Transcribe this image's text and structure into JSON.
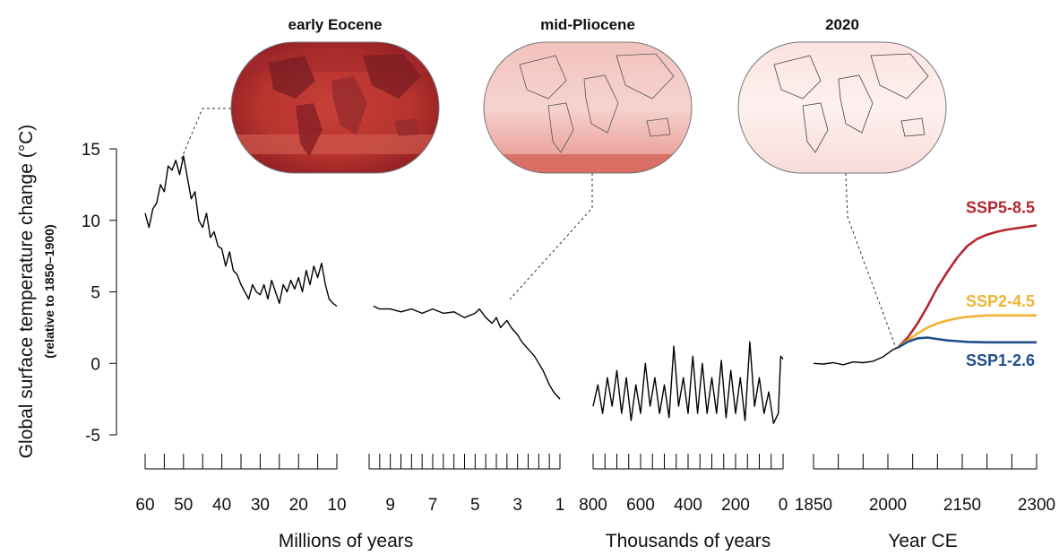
{
  "chart_data": {
    "type": "line",
    "ylabel": "Global surface temperature change (°C)",
    "ylabel_sub": "(relative to 1850–1900)",
    "yticks": [
      15,
      10,
      5,
      0,
      -5
    ],
    "ylim": [
      -5,
      15
    ],
    "grid": false,
    "panels": [
      {
        "xlabel": "Millions of years",
        "xlim": [
          60,
          10
        ],
        "tick_labels": [
          "60",
          "50",
          "40",
          "30",
          "20",
          "10"
        ],
        "series": [
          {
            "name": "",
            "x": [
              60,
              59,
              58,
              57,
              56,
              55,
              54,
              53,
              52,
              51,
              50,
              49,
              48,
              47,
              46,
              45,
              44,
              43,
              42,
              41,
              40,
              39,
              38,
              37,
              36,
              35,
              34,
              33,
              32,
              31,
              30,
              29,
              28,
              27,
              26,
              25,
              24,
              23,
              22,
              21,
              20,
              19,
              18,
              17,
              16,
              15,
              14,
              13,
              12,
              11,
              10
            ],
            "y": [
              10.5,
              9.5,
              10.8,
              11.2,
              12.5,
              12,
              13.8,
              13.5,
              14.2,
              13.2,
              14.5,
              13,
              11.5,
              12,
              10,
              9.5,
              10.5,
              8.8,
              9.2,
              8.2,
              8,
              6.8,
              7.8,
              6.5,
              6.2,
              5.5,
              5,
              4.5,
              5.5,
              5,
              4.8,
              5.5,
              4.5,
              5.8,
              5,
              4.2,
              5.5,
              5,
              5.8,
              5.2,
              6,
              5,
              6.5,
              5.5,
              6.8,
              6,
              7,
              5.5,
              4.5,
              4.2,
              4
            ]
          }
        ]
      },
      {
        "xlabel": "",
        "xlim": [
          10,
          1
        ],
        "tick_labels": [
          "9",
          "7",
          "5",
          "3",
          "1"
        ],
        "series": [
          {
            "name": "",
            "x": [
              9.8,
              9.5,
              9,
              8.5,
              8,
              7.5,
              7,
              6.5,
              6,
              5.5,
              5,
              4.8,
              4.5,
              4.2,
              4,
              3.8,
              3.5,
              3.3,
              3,
              2.8,
              2.5,
              2.2,
              2,
              1.8,
              1.5,
              1.3,
              1
            ],
            "y": [
              4,
              3.8,
              3.8,
              3.6,
              3.8,
              3.5,
              3.8,
              3.5,
              3.6,
              3.2,
              3.5,
              3.8,
              3.2,
              2.8,
              3.2,
              2.5,
              3,
              2.5,
              2,
              1.5,
              1,
              0.5,
              0,
              -0.5,
              -1.5,
              -2,
              -2.5
            ]
          }
        ]
      },
      {
        "xlabel": "Thousands of years",
        "xlim": [
          800,
          0
        ],
        "tick_labels": [
          "800",
          "600",
          "400",
          "200",
          "0"
        ],
        "series": [
          {
            "name": "",
            "x": [
              800,
              780,
              760,
              740,
              720,
              700,
              680,
              660,
              640,
              620,
              600,
              580,
              560,
              540,
              520,
              500,
              480,
              460,
              440,
              420,
              400,
              380,
              360,
              340,
              320,
              300,
              280,
              260,
              240,
              220,
              200,
              180,
              160,
              140,
              120,
              100,
              80,
              60,
              40,
              20,
              10,
              0
            ],
            "y": [
              -3,
              -1.5,
              -3.5,
              -1,
              -3,
              -0.5,
              -3.5,
              -1,
              -4,
              -1.5,
              -3.5,
              0,
              -3,
              -1,
              -3.5,
              -1.5,
              -3.8,
              1.2,
              -3,
              -1,
              -3.5,
              0.5,
              -3.5,
              0,
              -3.5,
              -1,
              -3.5,
              0.2,
              -3.8,
              -0.5,
              -3.5,
              -1,
              -4,
              1.5,
              -3,
              -1,
              -3.5,
              -2,
              -4.2,
              -3.5,
              0.5,
              0.3
            ]
          }
        ]
      },
      {
        "xlabel": "Year CE",
        "xlim": [
          1850,
          2300
        ],
        "tick_labels": [
          "1850",
          "2000",
          "2150",
          "2300"
        ],
        "series": [
          {
            "name": "",
            "color": "#000000",
            "x": [
              1850,
              1870,
              1890,
              1910,
              1930,
              1950,
              1970,
              1990,
              2000,
              2010,
              2020
            ],
            "y": [
              0,
              -0.05,
              0.05,
              -0.1,
              0.1,
              0.05,
              0.15,
              0.45,
              0.7,
              0.95,
              1.1
            ]
          },
          {
            "name": "SSP5-8.5",
            "color": "#b5262d",
            "x": [
              2020,
              2040,
              2060,
              2080,
              2100,
              2120,
              2140,
              2160,
              2180,
              2200,
              2220,
              2240,
              2260,
              2280,
              2300
            ],
            "y": [
              1.1,
              1.8,
              2.8,
              4.0,
              5.3,
              6.4,
              7.4,
              8.2,
              8.7,
              9.0,
              9.2,
              9.35,
              9.45,
              9.55,
              9.65
            ]
          },
          {
            "name": "SSP2-4.5",
            "color": "#f2b233",
            "x": [
              2020,
              2040,
              2060,
              2080,
              2100,
              2120,
              2140,
              2160,
              2180,
              2200,
              2220,
              2240,
              2260,
              2280,
              2300
            ],
            "y": [
              1.1,
              1.6,
              2.1,
              2.5,
              2.8,
              3.0,
              3.15,
              3.25,
              3.3,
              3.35,
              3.35,
              3.35,
              3.35,
              3.35,
              3.35
            ]
          },
          {
            "name": "SSP1-2.6",
            "color": "#1f4e8c",
            "x": [
              2020,
              2040,
              2060,
              2080,
              2100,
              2120,
              2140,
              2160,
              2180,
              2200,
              2220,
              2240,
              2260,
              2280,
              2300
            ],
            "y": [
              1.1,
              1.5,
              1.75,
              1.8,
              1.7,
              1.6,
              1.55,
              1.5,
              1.48,
              1.47,
              1.47,
              1.47,
              1.47,
              1.47,
              1.47
            ]
          }
        ]
      }
    ],
    "insets": [
      {
        "title": "early Eocene",
        "anchor_panel": 0,
        "anchor_x": 52,
        "anchor_y": 14.5
      },
      {
        "title": "mid-Pliocene",
        "anchor_panel": 1,
        "anchor_x": 3.2,
        "anchor_y": 4.5
      },
      {
        "title": "2020",
        "anchor_panel": 3,
        "anchor_x": 2020,
        "anchor_y": 1.1
      }
    ]
  }
}
